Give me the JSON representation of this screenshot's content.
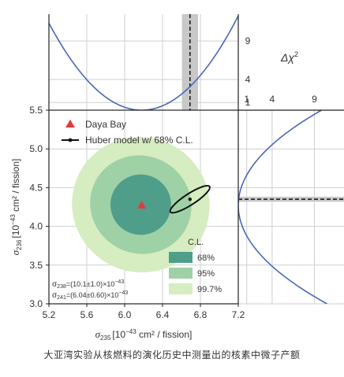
{
  "caption": "大亚湾实验从核燃料的演化历史中测量出的核素中微子产额",
  "colors": {
    "contour_99_7": "#d6ecc1",
    "contour_95": "#9fd1a6",
    "contour_68": "#4e9e8a",
    "data_marker": "#e33b3b",
    "profile_curve": "#4a67b8",
    "band": "#c8c8c8",
    "grid": "#cfcfcf",
    "frame": "#222222"
  },
  "chart_data": [
    {
      "type": "scatter",
      "panel": "main",
      "xlabel": "σ235 [10⁻⁴³ cm² / fission]",
      "xlabel_base": "σ",
      "xlabel_sub": "235",
      "xlabel_units": "[10",
      "xlabel_sup": "−43",
      "xlabel_rest": " cm² / fission]",
      "ylabel": "σ236 [10⁻⁴³ cm² / fission]",
      "ylabel_base": "σ",
      "ylabel_sub": "236",
      "ylabel_units": "[10",
      "ylabel_sup": "−43",
      "ylabel_rest": " cm² / fission]",
      "xlim": [
        5.2,
        7.2
      ],
      "ylim": [
        3.0,
        5.5
      ],
      "x_ticks": [
        5.2,
        5.6,
        6.0,
        6.4,
        6.8,
        7.2
      ],
      "x_tick_labels": [
        "5.2",
        "5.6",
        "6.0",
        "6.4",
        "6.8",
        "7.2"
      ],
      "y_ticks": [
        3.0,
        3.5,
        4.0,
        4.5,
        5.0,
        5.5
      ],
      "y_tick_labels": [
        "3.0",
        "3.5",
        "4.0",
        "4.5",
        "5.0",
        "5.5"
      ],
      "grid": true,
      "best_fit": {
        "label": "Daya Bay",
        "x": 6.18,
        "y": 4.27
      },
      "huber_model": {
        "label": "Huber model w/ 68% C.L.",
        "x": 6.69,
        "y": 4.35,
        "dx": 0.17,
        "dy": 0.065
      },
      "confidence_levels": {
        "title": "C.L.",
        "regions": [
          {
            "label": "99.7%",
            "cx": 6.17,
            "cy": 4.28,
            "rx": 0.73,
            "ry": 0.87
          },
          {
            "label": "95%",
            "cx": 6.17,
            "cy": 4.28,
            "rx": 0.54,
            "ry": 0.63
          },
          {
            "label": "68%",
            "cx": 6.17,
            "cy": 4.28,
            "rx": 0.32,
            "ry": 0.39
          }
        ]
      },
      "legend_entries": [
        "Daya Bay",
        "Huber model w/ 68% C.L."
      ],
      "annotations": [
        {
          "base": "σ",
          "sub": "238",
          "text": "=(10.1±1.0)×10",
          "sup": "−43"
        },
        {
          "base": "σ",
          "sub": "241",
          "text": "=(6.04±0.60)×10",
          "sup": "−43"
        }
      ]
    },
    {
      "type": "line",
      "panel": "top",
      "ylabel": "Δχ²",
      "ylabel_base": "Δχ",
      "ylabel_sup": "2",
      "ylim": [
        0,
        12.5
      ],
      "y_ticks": [
        1,
        4,
        9
      ],
      "y_tick_labels": [
        "1",
        "4",
        "9"
      ],
      "profile": {
        "min_x": 6.18,
        "curvature": 11.8
      },
      "band": {
        "x_center": 6.69,
        "x_width": 0.17
      }
    },
    {
      "type": "line",
      "panel": "right",
      "xlim": [
        0,
        12.5
      ],
      "x_ticks": [
        1,
        4,
        9
      ],
      "x_tick_labels": [
        "1",
        "4",
        "9"
      ],
      "profile": {
        "min_y": 4.27,
        "curvature": 6.5
      },
      "band": {
        "y_center": 4.35,
        "y_height": 0.065
      }
    }
  ]
}
